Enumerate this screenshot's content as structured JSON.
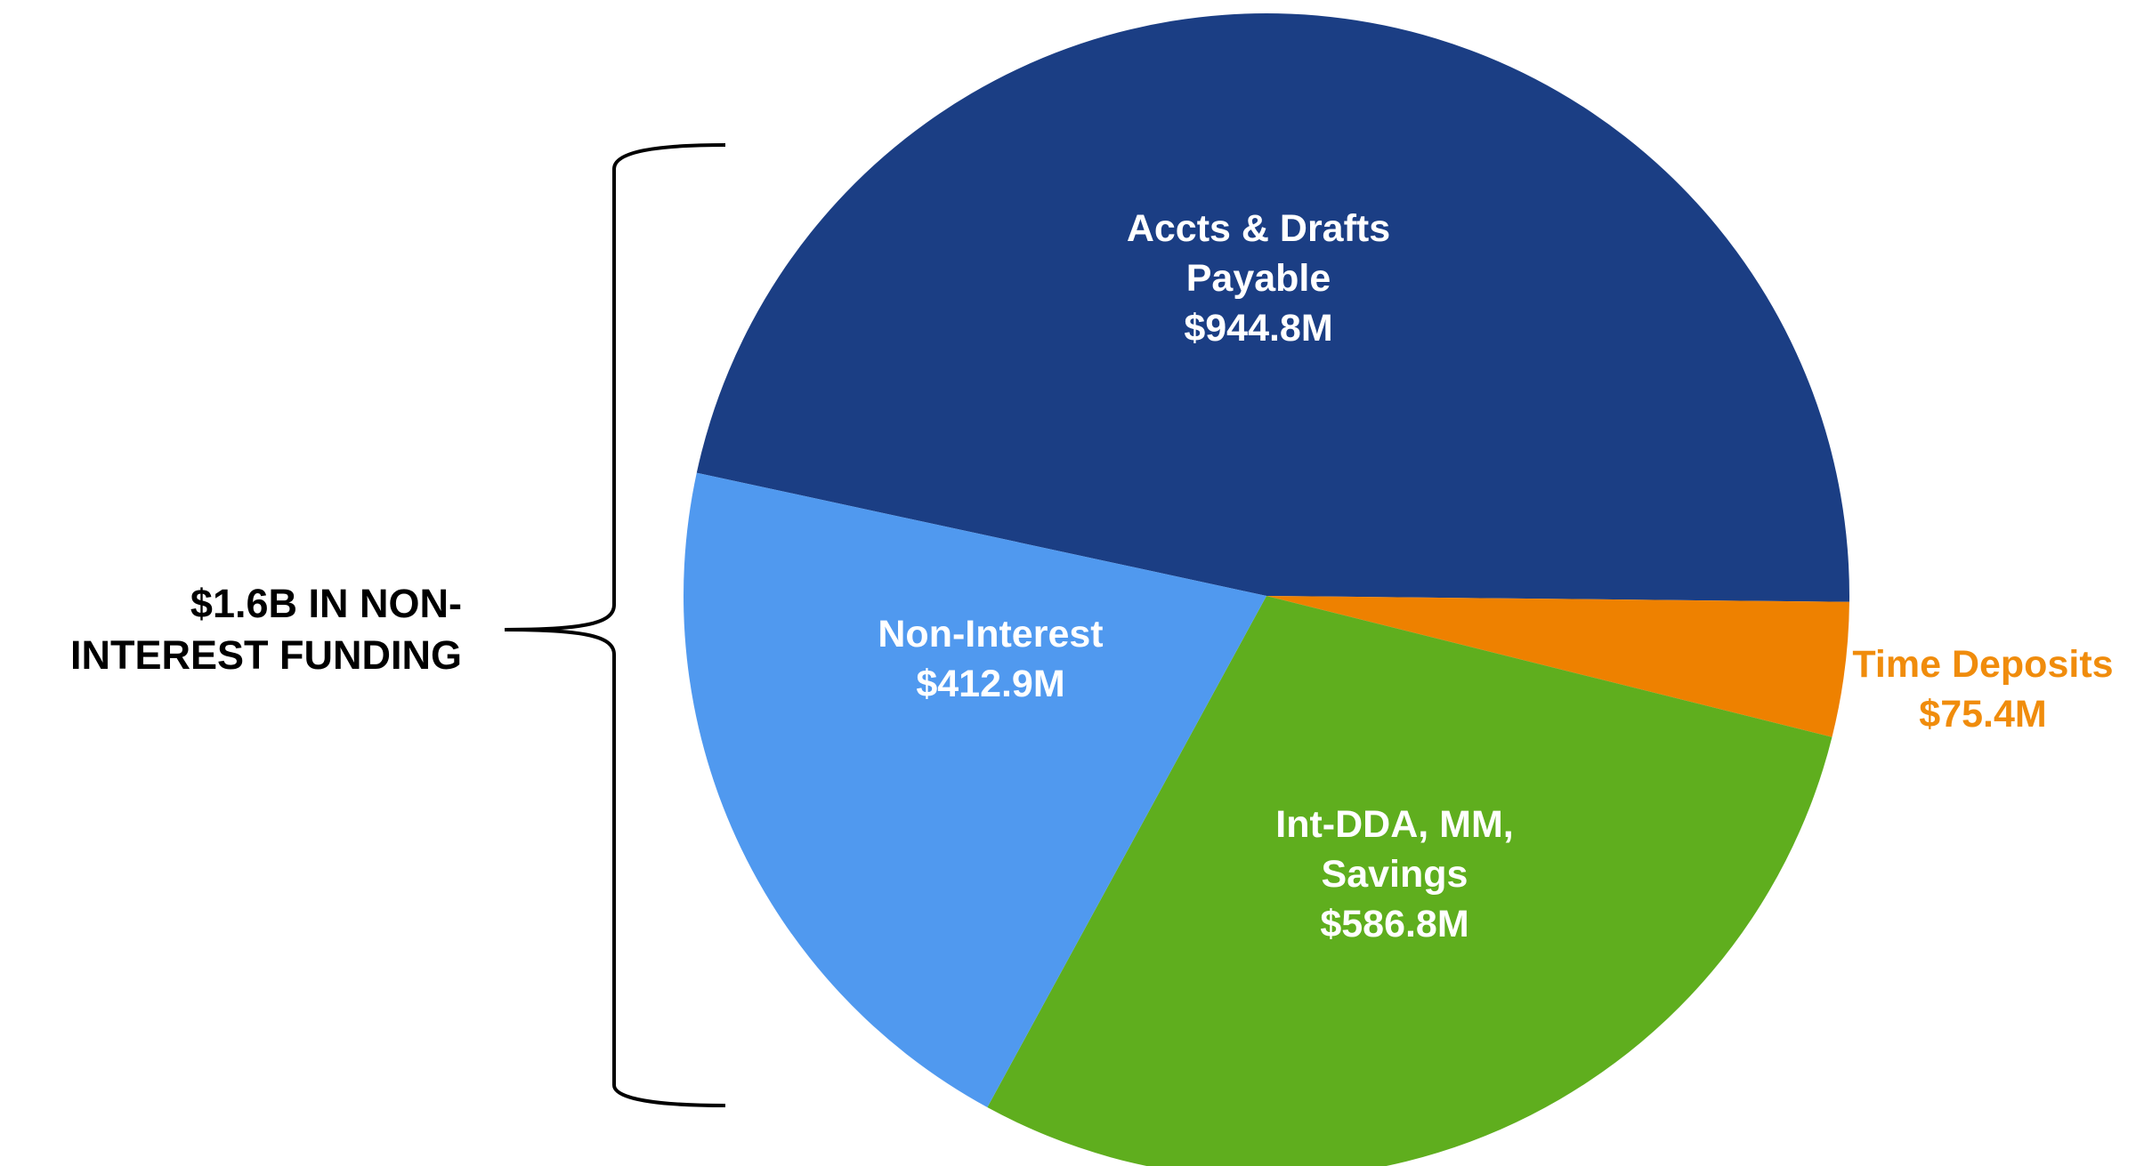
{
  "chart_data": {
    "type": "pie",
    "annotation": "$1.6B IN NON-INTEREST FUNDING",
    "categories": [
      "Accts & Drafts Payable",
      "Time Deposits",
      "Int-DDA, MM, Savings",
      "Non-Interest"
    ],
    "values": [
      944.8,
      75.4,
      586.8,
      412.9
    ],
    "value_labels": [
      "$944.8M",
      "$75.4M",
      "$586.8M",
      "$412.9M"
    ],
    "colors": [
      "#1b3e84",
      "#ee8100",
      "#5fae1e",
      "#5099ef"
    ]
  }
}
